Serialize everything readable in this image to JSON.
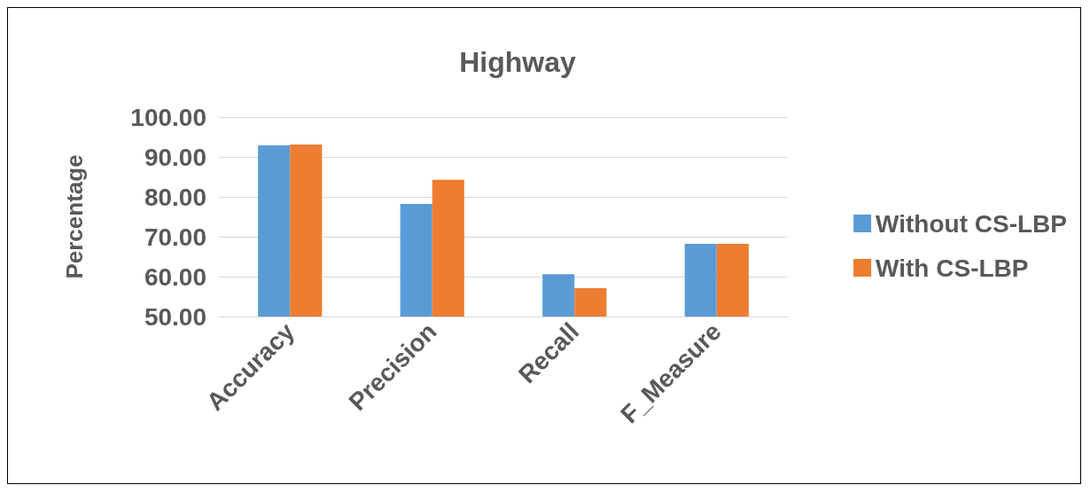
{
  "chart_data": {
    "type": "bar",
    "title": "Highway",
    "ylabel": "Percentage",
    "categories": [
      "Accuracy",
      "Precision",
      "Recall",
      "F_Measure"
    ],
    "series": [
      {
        "name": "Without CS-LBP",
        "color": "#5b9bd5",
        "values": [
          92.9,
          78.2,
          60.6,
          68.2
        ]
      },
      {
        "name": "With CS-LBP",
        "color": "#ed7d31",
        "values": [
          93.1,
          84.3,
          57.1,
          68.2
        ]
      }
    ],
    "ylim": [
      50,
      100
    ],
    "yticks": [
      {
        "value": 50,
        "label": "50.00"
      },
      {
        "value": 60,
        "label": "60.00"
      },
      {
        "value": 70,
        "label": "70.00"
      },
      {
        "value": 80,
        "label": "80.00"
      },
      {
        "value": 90,
        "label": "90.00"
      },
      {
        "value": 100,
        "label": "100.00"
      }
    ],
    "grid": "y",
    "legend": "right"
  }
}
